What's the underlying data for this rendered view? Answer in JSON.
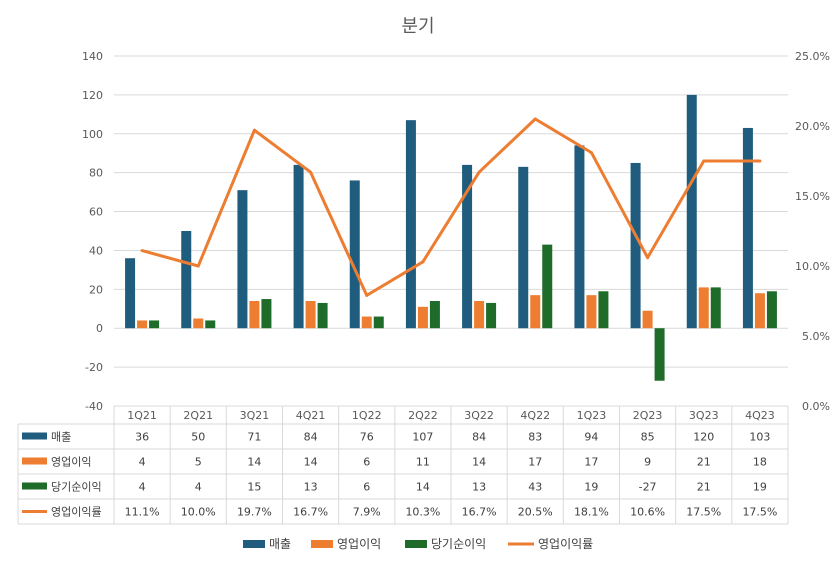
{
  "chart_data": {
    "type": "bar",
    "title": "분기",
    "categories": [
      "1Q21",
      "2Q21",
      "3Q21",
      "4Q21",
      "1Q22",
      "2Q22",
      "3Q22",
      "4Q22",
      "1Q23",
      "2Q23",
      "3Q23",
      "4Q23"
    ],
    "ylim": [
      -40,
      140
    ],
    "y_ticks": [
      -40,
      -20,
      0,
      20,
      40,
      60,
      80,
      100,
      120,
      140
    ],
    "y2lim": [
      0,
      25
    ],
    "y2_ticks": [
      "0.0%",
      "5.0%",
      "10.0%",
      "15.0%",
      "20.0%",
      "25.0%"
    ],
    "y2_values": [
      0,
      5,
      10,
      15,
      20,
      25
    ],
    "grid": true,
    "legend_position": "bottom",
    "data_table": true,
    "series": [
      {
        "name": "매출",
        "type": "bar",
        "axis": "left",
        "color": "#1f5c7e",
        "values": [
          36,
          50,
          71,
          84,
          76,
          107,
          84,
          83,
          94,
          85,
          120,
          103
        ],
        "labels": [
          "36",
          "50",
          "71",
          "84",
          "76",
          "107",
          "84",
          "83",
          "94",
          "85",
          "120",
          "103"
        ]
      },
      {
        "name": "영업이익",
        "type": "bar",
        "axis": "left",
        "color": "#ed7d31",
        "values": [
          4,
          5,
          14,
          14,
          6,
          11,
          14,
          17,
          17,
          9,
          21,
          18
        ],
        "labels": [
          "4",
          "5",
          "14",
          "14",
          "6",
          "11",
          "14",
          "17",
          "17",
          "9",
          "21",
          "18"
        ]
      },
      {
        "name": "당기순이익",
        "type": "bar",
        "axis": "left",
        "color": "#1e6b2a",
        "values": [
          4,
          4,
          15,
          13,
          6,
          14,
          13,
          43,
          19,
          -27,
          21,
          19
        ],
        "labels": [
          "4",
          "4",
          "15",
          "13",
          "6",
          "14",
          "13",
          "43",
          "19",
          "-27",
          "21",
          "19"
        ]
      },
      {
        "name": "영업이익률",
        "type": "line",
        "axis": "right",
        "color": "#ed7d31",
        "values": [
          11.1,
          10.0,
          19.7,
          16.7,
          7.9,
          10.3,
          16.7,
          20.5,
          18.1,
          10.6,
          17.5,
          17.5
        ],
        "labels": [
          "11.1%",
          "10.0%",
          "19.7%",
          "16.7%",
          "7.9%",
          "10.3%",
          "16.7%",
          "20.5%",
          "18.1%",
          "10.6%",
          "17.5%",
          "17.5%"
        ]
      }
    ]
  }
}
